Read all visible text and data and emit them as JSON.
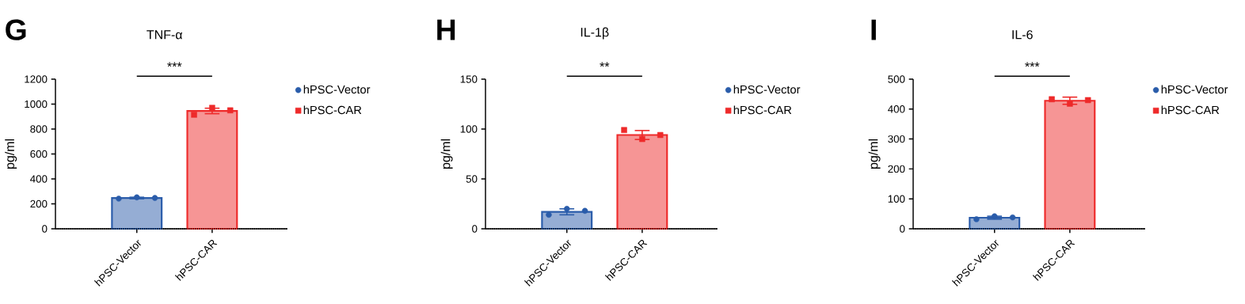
{
  "chart_data": [
    {
      "type": "bar",
      "title": "TNF-α",
      "ylabel": "pg/ml",
      "categories": [
        "hPSC-Vector",
        "hPSC-CAR"
      ],
      "ylim": [
        0,
        1200
      ],
      "yticks": [
        0,
        200,
        400,
        600,
        800,
        1000,
        1200
      ],
      "legend": "right",
      "grid": false,
      "annotations": [
        "G",
        "***"
      ],
      "ref_lines": [
        {
          "axis": "y",
          "value": 0,
          "line_style": "dotted",
          "color": "#000000"
        }
      ],
      "series": [
        {
          "color": "#2a5caa",
          "values": [
            247,
            null
          ],
          "errors": [
            6,
            null
          ]
        },
        {
          "color": "#ee2a2a",
          "values": [
            null,
            945
          ],
          "errors": [
            null,
            22
          ]
        },
        {
          "name": "hPSC-Vector",
          "type": "scatter",
          "color": "#2a5caa",
          "x": [
            "hPSC-Vector",
            "hPSC-Vector",
            "hPSC-Vector"
          ],
          "values": [
            242,
            252,
            247
          ],
          "marker": "circle"
        },
        {
          "name": "hPSC-CAR",
          "type": "scatter",
          "color": "#ee2a2a",
          "x": [
            "hPSC-CAR",
            "hPSC-CAR",
            "hPSC-CAR"
          ],
          "values": [
            915,
            970,
            950
          ],
          "marker": "square"
        }
      ]
    },
    {
      "type": "bar",
      "title": "IL-1β",
      "ylabel": "pg/ml",
      "categories": [
        "hPSC-Vector",
        "hPSC-CAR"
      ],
      "ylim": [
        0,
        150
      ],
      "yticks": [
        0,
        50,
        100,
        150
      ],
      "legend": "right",
      "grid": false,
      "annotations": [
        "H",
        "**"
      ],
      "ref_lines": [
        {
          "axis": "y",
          "value": 0,
          "line_style": "dotted",
          "color": "#000000"
        }
      ],
      "series": [
        {
          "color": "#2a5caa",
          "values": [
            17,
            null
          ],
          "errors": [
            3,
            null
          ]
        },
        {
          "color": "#ee2a2a",
          "values": [
            null,
            94
          ],
          "errors": [
            null,
            4.5
          ]
        },
        {
          "name": "hPSC-Vector",
          "type": "scatter",
          "color": "#2a5caa",
          "x": [
            "hPSC-Vector",
            "hPSC-Vector",
            "hPSC-Vector"
          ],
          "values": [
            14,
            20,
            18
          ],
          "marker": "circle"
        },
        {
          "name": "hPSC-CAR",
          "type": "scatter",
          "color": "#ee2a2a",
          "x": [
            "hPSC-CAR",
            "hPSC-CAR",
            "hPSC-CAR"
          ],
          "values": [
            99,
            90,
            94
          ],
          "marker": "square"
        }
      ]
    },
    {
      "type": "bar",
      "title": "IL-6",
      "ylabel": "pg/ml",
      "categories": [
        "hPSC-Vector",
        "hPSC-CAR"
      ],
      "ylim": [
        0,
        500
      ],
      "yticks": [
        0,
        100,
        200,
        300,
        400,
        500
      ],
      "legend": "right",
      "grid": false,
      "annotations": [
        "I",
        "***"
      ],
      "ref_lines": [
        {
          "axis": "y",
          "value": 0,
          "line_style": "dotted",
          "color": "#000000"
        }
      ],
      "series": [
        {
          "color": "#2a5caa",
          "values": [
            37,
            null
          ],
          "errors": [
            5,
            null
          ]
        },
        {
          "color": "#ee2a2a",
          "values": [
            null,
            428
          ],
          "errors": [
            null,
            12
          ]
        },
        {
          "name": "hPSC-Vector",
          "type": "scatter",
          "color": "#2a5caa",
          "x": [
            "hPSC-Vector",
            "hPSC-Vector",
            "hPSC-Vector"
          ],
          "values": [
            32,
            42,
            38
          ],
          "marker": "circle"
        },
        {
          "name": "hPSC-CAR",
          "type": "scatter",
          "color": "#ee2a2a",
          "x": [
            "hPSC-CAR",
            "hPSC-CAR",
            "hPSC-CAR"
          ],
          "values": [
            433,
            418,
            430
          ],
          "marker": "square"
        }
      ]
    }
  ]
}
